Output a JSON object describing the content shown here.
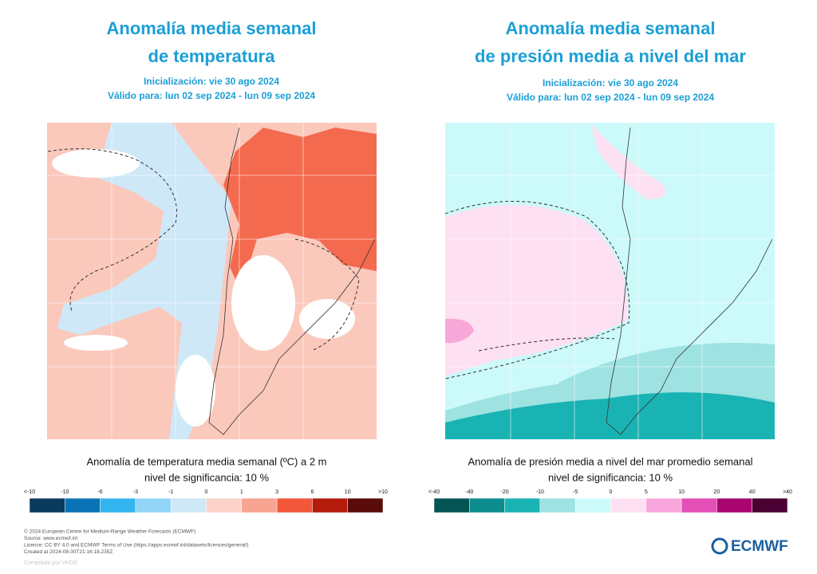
{
  "panels": [
    {
      "title": [
        "Anomalía media semanal",
        "de temperatura"
      ],
      "init": "Inicialización: vie 30 ago 2024",
      "valid": "Válido para: lun 02 sep 2024 - lun 09 sep 2024",
      "caption": "Anomalía de temperatura media semanal (ºC) a 2 m",
      "significance": "nivel de significancia: 10 %",
      "legend": {
        "labels": [
          "<-10",
          "-10",
          "-6",
          "-3",
          "-1",
          "0",
          "1",
          "3",
          "6",
          "10",
          ">10"
        ],
        "colors": [
          "#0a3a5e",
          "#0b72b5",
          "#33b5f0",
          "#92d5f7",
          "#cfe8f8",
          "#fcd3cb",
          "#f8a492",
          "#f2573a",
          "#b31b0c",
          "#5a0c0a"
        ]
      }
    },
    {
      "title": [
        "Anomalía media semanal",
        "de presión media a nivel del mar"
      ],
      "init": "Inicialización: vie 30 ago 2024",
      "valid": "Válido para: lun 02 sep 2024 - lun 09 sep 2024",
      "caption": "Anomalía de presión media a nivel del mar promedio semanal",
      "significance": "nivel de significancia: 10 %",
      "legend": {
        "labels": [
          "<-40",
          "-40",
          "-20",
          "-10",
          "-5",
          "0",
          "5",
          "10",
          "20",
          "40",
          ">40"
        ],
        "colors": [
          "#045454",
          "#0c8c8c",
          "#1ab3b3",
          "#9ee2e2",
          "#ccf9f9",
          "#fde0f2",
          "#f9a6dc",
          "#e34fb6",
          "#a8066e",
          "#4a0033"
        ]
      }
    }
  ],
  "footer": {
    "lines": [
      "© 2024 European Centre for Medium-Range Weather Forecasts (ECMWF)",
      "Source: www.ecmwf.int",
      "Licence: CC BY 4.0 and ECMWF Terms of Use (https://apps.ecmwf.int/datasets/licences/general/)",
      "Created at 2024-08-30T21:16:18.235Z"
    ],
    "logo": "ECMWF",
    "watermark": "Compilado por VHDG"
  }
}
